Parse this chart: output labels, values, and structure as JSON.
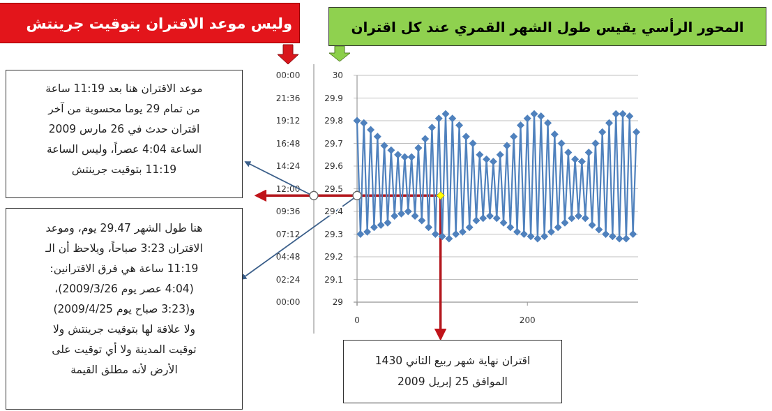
{
  "chart_data": {
    "type": "line",
    "x": [
      0,
      4,
      8,
      12,
      16,
      20,
      24,
      28,
      32,
      36,
      40,
      44,
      48,
      52,
      56,
      60,
      64,
      68,
      72,
      76,
      80,
      84,
      88,
      92,
      96,
      100,
      104,
      108,
      112,
      116,
      120,
      124,
      128,
      132,
      136,
      140,
      144,
      148,
      152,
      156,
      160,
      164,
      168,
      172,
      176,
      180,
      184,
      188,
      192,
      196,
      200,
      204,
      208,
      212,
      216,
      220,
      224,
      228,
      232,
      236,
      240,
      244,
      248,
      252,
      256,
      260,
      264,
      268,
      272,
      276,
      280,
      284,
      288,
      292,
      296,
      300,
      304,
      308,
      312,
      316,
      320,
      324,
      328
    ],
    "series": [
      {
        "color": "#4f81bd",
        "values": [
          29.8,
          29.3,
          29.79,
          29.31,
          29.76,
          29.33,
          29.73,
          29.34,
          29.69,
          29.35,
          29.67,
          29.38,
          29.65,
          29.39,
          29.64,
          29.4,
          29.64,
          29.38,
          29.68,
          29.36,
          29.72,
          29.33,
          29.77,
          29.3,
          29.81,
          29.29,
          29.83,
          29.28,
          29.81,
          29.3,
          29.78,
          29.31,
          29.73,
          29.33,
          29.7,
          29.36,
          29.65,
          29.37,
          29.63,
          29.38,
          29.62,
          29.37,
          29.65,
          29.35,
          29.69,
          29.33,
          29.73,
          29.31,
          29.78,
          29.3,
          29.81,
          29.29,
          29.83,
          29.28,
          29.82,
          29.29,
          29.79,
          29.31,
          29.74,
          29.33,
          29.7,
          29.35,
          29.66,
          29.37,
          29.63,
          29.38,
          29.62,
          29.37,
          29.66,
          29.34,
          29.7,
          29.32,
          29.75,
          29.3,
          29.79,
          29.29,
          29.83,
          29.28,
          29.83,
          29.28,
          29.82,
          29.3,
          29.75
        ]
      },
      {
        "type": "scatter",
        "x": [
          98
        ],
        "color": "#ffff00",
        "values": [
          29.47
        ]
      }
    ],
    "xlim": [
      0,
      330
    ],
    "xticks": [
      0,
      200
    ],
    "ylim": [
      29,
      30
    ],
    "yticks": [
      29,
      29.1,
      29.2,
      29.3,
      29.4,
      29.5,
      29.6,
      29.7,
      29.8,
      29.9,
      30
    ],
    "y2lim": [
      0,
      24
    ],
    "y2ticks": [
      {
        "value": 0,
        "label": "00:00"
      },
      {
        "value": 2.4,
        "label": "02:24"
      },
      {
        "value": 4.8,
        "label": "04:48"
      },
      {
        "value": 7.2,
        "label": "07:12"
      },
      {
        "value": 9.6,
        "label": "09:36"
      },
      {
        "value": 12,
        "label": "12:00"
      },
      {
        "value": 14.4,
        "label": "14:24"
      },
      {
        "value": 16.8,
        "label": "16:48"
      },
      {
        "value": 19.2,
        "label": "19:12"
      },
      {
        "value": 21.6,
        "label": "21:36"
      },
      {
        "value": 24,
        "label": "00:00"
      }
    ],
    "grid": "y",
    "marker": "diamond",
    "annotations": [
      "وليس موعد الاقتران بتوقيت جرينتش",
      "المحور الرأسي يقيس طول الشهر القمري عند كل اقتران",
      "موعد الاقتران هنا بعد 11:19 ساعة\nمن تمام 29 يوما محسوبة من آخر\nاقتران حدث في 26 مارس 2009\nالساعة 4:04 عصراً، وليس الساعة\n11:19 بتوقيت جرينتش",
      "هنا طول الشهر 29.47 يوم، وموعد\nالاقتران 3:23 صباحاً، ويلاحظ أن الـ\n11:19 ساعة هي فرق الاقترانين:\n(4:04 عصر يوم 2009/3/26)،\nو(3:23 صباح يوم 2009/4/25)\nولا علاقة لها بتوقيت جرينتش ولا\nتوقيت المدينة ولا أي توقيت على\nالأرض لأنه مطلق القيمة",
      "اقتران نهاية شهر ربيع الثاني 1430\nالموافق 25 إبريل 2009"
    ]
  }
}
